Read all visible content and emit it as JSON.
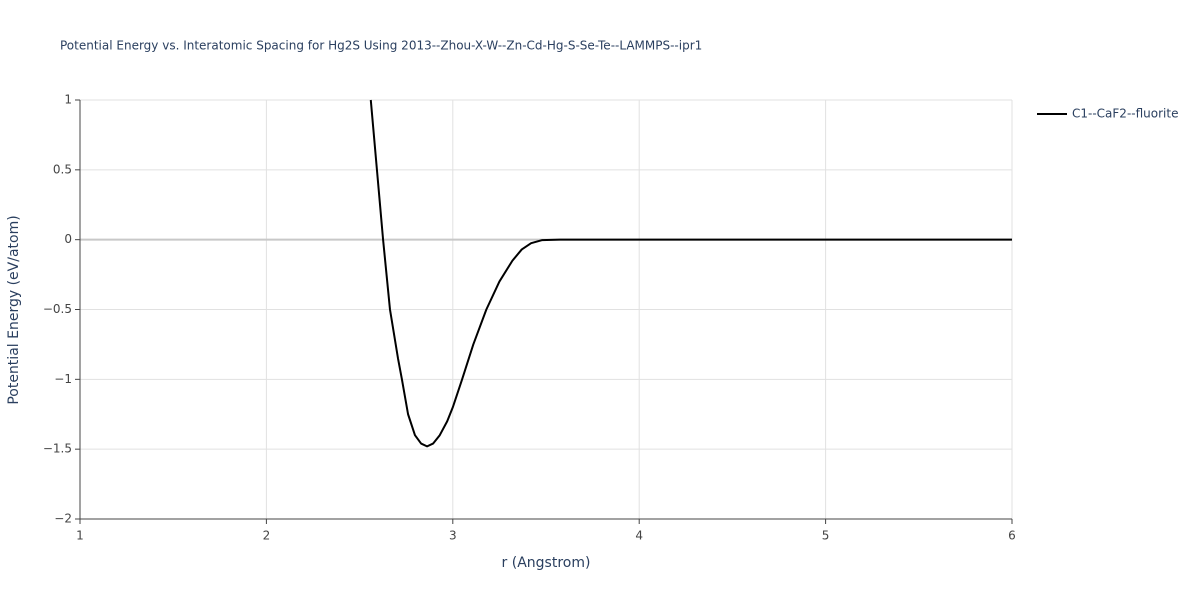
{
  "chart_data": {
    "type": "line",
    "title": "Potential Energy vs. Interatomic Spacing for Hg2S Using 2013--Zhou-X-W--Zn-Cd-Hg-S-Se-Te--LAMMPS--ipr1",
    "x_label": "r (Angstrom)",
    "y_label": "Potential Energy (eV/atom)",
    "x": [
      2.56,
      2.593,
      2.626,
      2.663,
      2.706,
      2.727,
      2.76,
      2.797,
      2.83,
      2.862,
      2.894,
      2.93,
      2.97,
      3.0,
      3.05,
      3.11,
      3.18,
      3.25,
      3.32,
      3.37,
      3.42,
      3.48,
      3.575,
      4,
      5,
      6
    ],
    "series": [
      {
        "name": "C1--CaF2--fluorite",
        "color": "#000000",
        "values": [
          1.0,
          0.5,
          0.0,
          -0.5,
          -0.85,
          -1.0,
          -1.25,
          -1.4,
          -1.46,
          -1.48,
          -1.46,
          -1.4,
          -1.3,
          -1.2,
          -1.0,
          -0.75,
          -0.5,
          -0.3,
          -0.15,
          -0.07,
          -0.025,
          -0.003,
          0,
          0,
          0,
          0
        ]
      }
    ],
    "xlim": [
      1,
      6
    ],
    "xticks": [
      1,
      2,
      3,
      4,
      5,
      6
    ],
    "ylim": [
      -2,
      1
    ],
    "yticks": [
      {
        "value": -2,
        "label": "−2"
      },
      {
        "value": -1.5,
        "label": "−1.5"
      },
      {
        "value": -1,
        "label": "−1"
      },
      {
        "value": -0.5,
        "label": "−0.5"
      },
      0,
      0.5,
      1
    ],
    "grid": true,
    "legend": "top-right"
  }
}
